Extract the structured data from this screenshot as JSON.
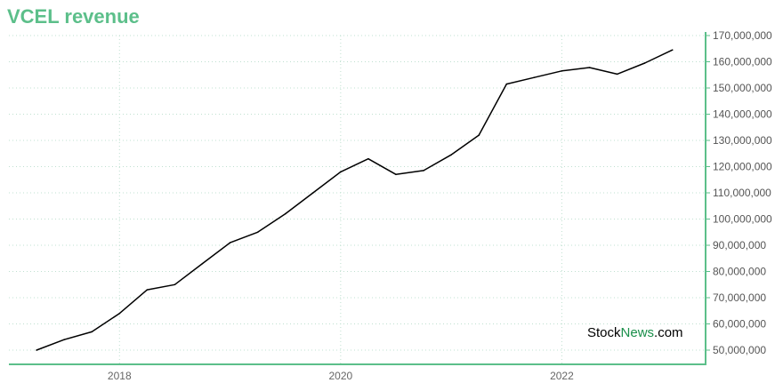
{
  "chart_data": {
    "type": "line",
    "title": "VCEL revenue",
    "xlabel": "",
    "ylabel": "",
    "x_tick_labels": [
      "2018",
      "2020",
      "2022"
    ],
    "x_ticks_year": [
      2018,
      2020,
      2022
    ],
    "xlim": [
      2017.0,
      2023.3
    ],
    "ylim": [
      50000000,
      170000000
    ],
    "y_ticks": [
      50000000,
      60000000,
      70000000,
      80000000,
      90000000,
      100000000,
      110000000,
      120000000,
      130000000,
      140000000,
      150000000,
      160000000,
      170000000
    ],
    "y_tick_labels": [
      "50,000,000",
      "60,000,000",
      "70,000,000",
      "80,000,000",
      "90,000,000",
      "100,000,000",
      "110,000,000",
      "120,000,000",
      "130,000,000",
      "140,000,000",
      "150,000,000",
      "160,000,000",
      "170,000,000"
    ],
    "grid": true,
    "series": [
      {
        "x": [
          2017.25,
          2017.5,
          2017.75,
          2018.0,
          2018.25,
          2018.5,
          2018.75,
          2019.0,
          2019.25,
          2019.5,
          2019.75,
          2020.0,
          2020.25,
          2020.5,
          2020.75,
          2021.0,
          2021.25,
          2021.5,
          2021.75,
          2022.0,
          2022.25,
          2022.5,
          2022.75,
          2023.0
        ],
        "values": [
          50000000,
          54000000,
          57000000,
          64000000,
          73000000,
          75000000,
          83000000,
          91000000,
          95000000,
          102000000,
          110000000,
          118000000,
          123000000,
          117000000,
          118500000,
          124500000,
          132000000,
          151500000,
          154000000,
          156500000,
          157800000,
          155300000,
          159500000,
          164500000
        ],
        "color": "#000000"
      }
    ],
    "colors": {
      "title": "#5cbf8a",
      "axis": "#5cbf8a",
      "grid": "#bfe0d0",
      "line": "#000000"
    }
  },
  "watermark": {
    "part1": "Stock",
    "part2": "News",
    "part3": ".com",
    "color_dark": "#000000",
    "color_green": "#1a8f4a"
  }
}
